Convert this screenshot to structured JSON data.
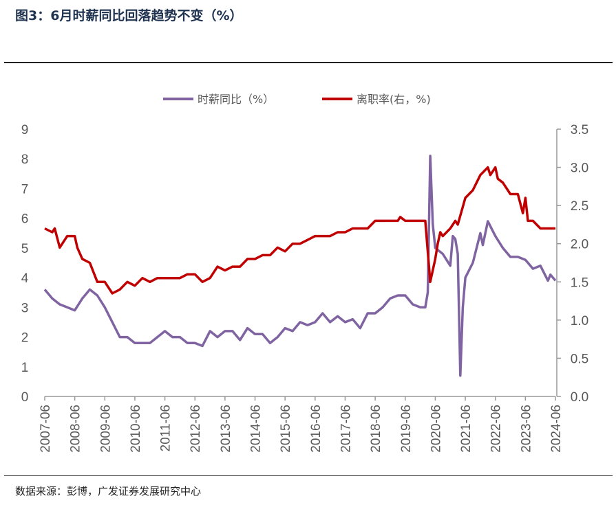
{
  "title": "图3：6月时薪同比回落趋势不变（%）",
  "source": "数据来源：彭博，广发证券发展研究中心",
  "colors": {
    "wage": "#8064a2",
    "quit": "#c00000",
    "title": "#1f3350"
  },
  "chart_data": {
    "type": "line",
    "title": "",
    "x_ticks": [
      "2007-06",
      "2008-06",
      "2009-06",
      "2010-06",
      "2011-06",
      "2012-06",
      "2013-06",
      "2014-06",
      "2015-06",
      "2016-06",
      "2017-06",
      "2018-06",
      "2019-06",
      "2020-06",
      "2021-06",
      "2022-06",
      "2023-06",
      "2024-06"
    ],
    "y_left": {
      "range": [
        0,
        9
      ],
      "ticks": [
        "0",
        "1",
        "2",
        "3",
        "4",
        "5",
        "6",
        "7",
        "8",
        "9"
      ]
    },
    "y_right": {
      "range": [
        0,
        3.5
      ],
      "ticks": [
        "0.0",
        "0.5",
        "1.0",
        "1.5",
        "2.0",
        "2.5",
        "3.0",
        "3.5"
      ]
    },
    "legend_position": "top",
    "grid": false,
    "series": [
      {
        "name": "时薪同比（%）",
        "axis": "left",
        "color": "#8064a2",
        "x": [
          "2007-06",
          "2007-09",
          "2007-12",
          "2008-03",
          "2008-06",
          "2008-09",
          "2008-12",
          "2009-03",
          "2009-06",
          "2009-09",
          "2009-12",
          "2010-03",
          "2010-06",
          "2010-09",
          "2010-12",
          "2011-03",
          "2011-06",
          "2011-09",
          "2011-12",
          "2012-03",
          "2012-06",
          "2012-09",
          "2012-12",
          "2013-03",
          "2013-06",
          "2013-09",
          "2013-12",
          "2014-03",
          "2014-06",
          "2014-09",
          "2014-12",
          "2015-03",
          "2015-06",
          "2015-09",
          "2015-12",
          "2016-03",
          "2016-06",
          "2016-09",
          "2016-12",
          "2017-03",
          "2017-06",
          "2017-09",
          "2017-12",
          "2018-03",
          "2018-06",
          "2018-09",
          "2018-12",
          "2019-03",
          "2019-06",
          "2019-09",
          "2019-12",
          "2020-02",
          "2020-03",
          "2020-04",
          "2020-05",
          "2020-06",
          "2020-09",
          "2020-12",
          "2021-01",
          "2021-02",
          "2021-03",
          "2021-04",
          "2021-05",
          "2021-06",
          "2021-09",
          "2021-12",
          "2022-01",
          "2022-03",
          "2022-06",
          "2022-09",
          "2022-12",
          "2023-03",
          "2023-06",
          "2023-09",
          "2023-12",
          "2024-03",
          "2024-04",
          "2024-06"
        ],
        "values": [
          3.6,
          3.3,
          3.1,
          3.0,
          2.9,
          3.3,
          3.6,
          3.4,
          3.0,
          2.5,
          2.0,
          2.0,
          1.8,
          1.8,
          1.8,
          2.0,
          2.2,
          2.0,
          2.0,
          1.8,
          1.8,
          1.7,
          2.2,
          2.0,
          2.2,
          2.2,
          1.9,
          2.3,
          2.1,
          2.1,
          1.8,
          2.0,
          2.3,
          2.2,
          2.5,
          2.4,
          2.5,
          2.8,
          2.5,
          2.7,
          2.5,
          2.6,
          2.3,
          2.8,
          2.8,
          3.0,
          3.3,
          3.4,
          3.4,
          3.1,
          3.0,
          3.0,
          3.5,
          8.1,
          5.8,
          5.0,
          4.8,
          4.4,
          5.4,
          5.3,
          4.8,
          0.7,
          3.0,
          4.0,
          4.5,
          5.5,
          5.1,
          5.9,
          5.4,
          5.0,
          4.7,
          4.7,
          4.6,
          4.3,
          4.4,
          3.9,
          4.1,
          3.9
        ]
      },
      {
        "name": "离职率(右，%)",
        "axis": "right",
        "color": "#c00000",
        "x": [
          "2007-06",
          "2007-09",
          "2007-10",
          "2007-12",
          "2008-03",
          "2008-06",
          "2008-07",
          "2008-09",
          "2008-12",
          "2009-03",
          "2009-06",
          "2009-09",
          "2009-12",
          "2010-03",
          "2010-06",
          "2010-09",
          "2010-12",
          "2011-03",
          "2011-06",
          "2011-12",
          "2012-03",
          "2012-06",
          "2012-09",
          "2012-12",
          "2013-03",
          "2013-06",
          "2013-09",
          "2013-12",
          "2014-03",
          "2014-06",
          "2014-09",
          "2014-12",
          "2015-03",
          "2015-06",
          "2015-09",
          "2015-12",
          "2016-03",
          "2016-06",
          "2016-09",
          "2016-12",
          "2017-03",
          "2017-06",
          "2017-09",
          "2017-12",
          "2018-03",
          "2018-06",
          "2018-12",
          "2019-03",
          "2019-04",
          "2019-06",
          "2019-12",
          "2020-02",
          "2020-04",
          "2020-06",
          "2020-07",
          "2020-08",
          "2020-09",
          "2020-12",
          "2021-02",
          "2021-03",
          "2021-06",
          "2021-09",
          "2021-12",
          "2022-03",
          "2022-04",
          "2022-06",
          "2022-07",
          "2022-09",
          "2022-12",
          "2023-03",
          "2023-05",
          "2023-06",
          "2023-07",
          "2023-09",
          "2023-12",
          "2024-06"
        ],
        "values": [
          2.2,
          2.15,
          2.2,
          1.95,
          2.1,
          2.1,
          1.95,
          1.8,
          1.75,
          1.5,
          1.5,
          1.35,
          1.4,
          1.5,
          1.45,
          1.55,
          1.5,
          1.55,
          1.55,
          1.55,
          1.6,
          1.6,
          1.5,
          1.55,
          1.7,
          1.65,
          1.7,
          1.7,
          1.8,
          1.8,
          1.85,
          1.85,
          1.95,
          1.9,
          2.0,
          2.0,
          2.05,
          2.1,
          2.1,
          2.1,
          2.15,
          2.15,
          2.2,
          2.2,
          2.2,
          2.3,
          2.3,
          2.3,
          2.35,
          2.3,
          2.3,
          2.3,
          1.5,
          1.8,
          2.0,
          2.15,
          2.1,
          2.2,
          2.3,
          2.25,
          2.6,
          2.7,
          2.9,
          3.0,
          2.9,
          3.0,
          2.85,
          2.8,
          2.65,
          2.65,
          2.4,
          2.6,
          2.3,
          2.3,
          2.2,
          2.2
        ]
      }
    ]
  }
}
